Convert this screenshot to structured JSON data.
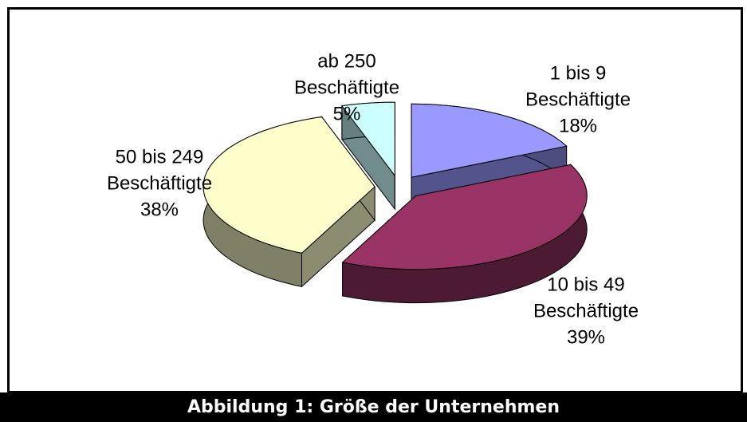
{
  "chart_data": {
    "type": "pie",
    "title": "Abbildung 1: Größe der Unternehmen",
    "categories": [
      "1 bis 9\nBeschäftigte",
      "10 bis 49\nBeschäftigte",
      "50 bis 249\nBeschäftigte",
      "ab 250\nBeschäftigte"
    ],
    "values": [
      18,
      39,
      38,
      5
    ],
    "value_labels": [
      "18%",
      "39%",
      "38%",
      "5%"
    ],
    "colors": [
      "#9999ff",
      "#993366",
      "#ffffcc",
      "#ccffff"
    ]
  }
}
